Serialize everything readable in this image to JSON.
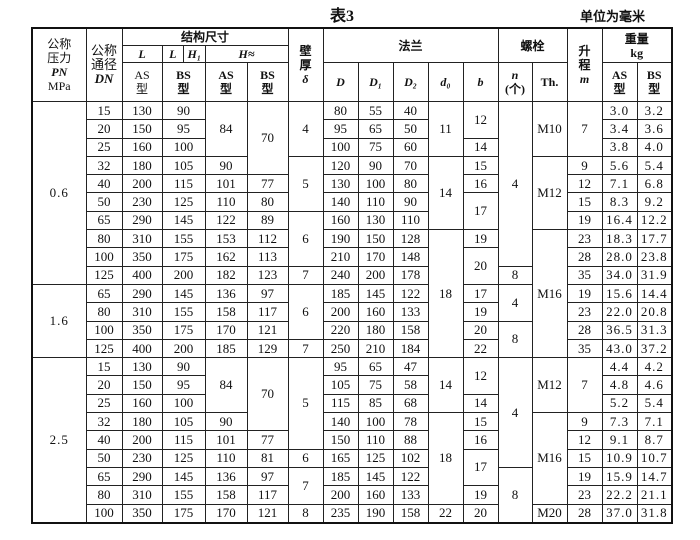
{
  "title": "表3",
  "unit": "单位为毫米",
  "header": {
    "pn": [
      "公称",
      "压力",
      "PN",
      "MPa"
    ],
    "dn": [
      "公称",
      "通径",
      "DN"
    ],
    "structure": "结构尺寸",
    "l": "L",
    "l_bs": "L",
    "h1": "H₁",
    "h_approx": "H≈",
    "wall": [
      "壁",
      "厚",
      "δ"
    ],
    "flange": "法兰",
    "d": "D",
    "d1": "D₁",
    "d2": "D₂",
    "d0": "d₀",
    "b": "b",
    "bolt": "螺栓",
    "n": [
      "n",
      "(个)"
    ],
    "th": "Th.",
    "lift": [
      "升",
      "程",
      "m"
    ],
    "weight": [
      "重量",
      "kg"
    ],
    "as_type": [
      "AS",
      "型"
    ],
    "bs_type": [
      "BS",
      "型"
    ]
  },
  "columns": {
    "pn": [
      "0.6",
      "1.6",
      "2.5"
    ],
    "dn": [
      "15",
      "20",
      "25",
      "32",
      "40",
      "50",
      "65",
      "80",
      "100",
      "125",
      "65",
      "80",
      "100",
      "125",
      "15",
      "20",
      "25",
      "32",
      "40",
      "50",
      "65",
      "80",
      "100"
    ],
    "l_as": [
      "130",
      "150",
      "160",
      "180",
      "200",
      "230",
      "290",
      "310",
      "350",
      "400",
      "290",
      "310",
      "350",
      "400",
      "130",
      "150",
      "160",
      "180",
      "200",
      "230",
      "290",
      "310",
      "350"
    ],
    "l_bs": [
      "90",
      "95",
      "100",
      "105",
      "115",
      "125",
      "145",
      "155",
      "175",
      "200",
      "145",
      "155",
      "175",
      "200",
      "90",
      "95",
      "100",
      "105",
      "115",
      "125",
      "145",
      "155",
      "175"
    ],
    "h_as": [
      "84",
      "90",
      "101",
      "110",
      "122",
      "153",
      "162",
      "182",
      "136",
      "158",
      "170",
      "185",
      "84",
      "90",
      "101",
      "110",
      "136",
      "158",
      "170"
    ],
    "h_bs": [
      "70",
      "77",
      "80",
      "89",
      "112",
      "113",
      "123",
      "97",
      "117",
      "121",
      "129",
      "70",
      "77",
      "81",
      "97",
      "117",
      "121"
    ],
    "delta": [
      "4",
      "5",
      "6",
      "7",
      "6",
      "7",
      "5",
      "6",
      "7",
      "8"
    ],
    "d": [
      "80",
      "95",
      "100",
      "120",
      "130",
      "140",
      "160",
      "190",
      "210",
      "240",
      "185",
      "200",
      "220",
      "250",
      "95",
      "105",
      "115",
      "140",
      "150",
      "165",
      "185",
      "200",
      "235"
    ],
    "d1": [
      "55",
      "65",
      "75",
      "90",
      "100",
      "110",
      "130",
      "150",
      "170",
      "200",
      "145",
      "160",
      "180",
      "210",
      "65",
      "75",
      "85",
      "100",
      "110",
      "125",
      "145",
      "160",
      "190"
    ],
    "d2": [
      "40",
      "50",
      "60",
      "70",
      "80",
      "90",
      "110",
      "128",
      "148",
      "178",
      "122",
      "133",
      "158",
      "184",
      "47",
      "58",
      "68",
      "78",
      "88",
      "102",
      "122",
      "133",
      "158"
    ],
    "d0": [
      "11",
      "14",
      "18",
      "14",
      "18",
      "22"
    ],
    "b": [
      "12",
      "14",
      "15",
      "16",
      "17",
      "19",
      "20",
      "17",
      "19",
      "20",
      "22",
      "12",
      "14",
      "15",
      "16",
      "17",
      "19",
      "20"
    ],
    "n": [
      "4",
      "8",
      "4",
      "8",
      "4",
      "8"
    ],
    "th": [
      "M10",
      "M12",
      "M16",
      "M12",
      "M16",
      "M20"
    ],
    "m": [
      "7",
      "9",
      "12",
      "15",
      "19",
      "23",
      "28",
      "35",
      "19",
      "23",
      "28",
      "35",
      "7",
      "9",
      "12",
      "15",
      "19",
      "23",
      "28"
    ],
    "w_as": [
      "3.0",
      "3.4",
      "3.8",
      "5.6",
      "7.1",
      "8.3",
      "16.4",
      "18.3",
      "28.0",
      "34.0",
      "15.6",
      "22.0",
      "36.5",
      "43.0",
      "4.4",
      "4.8",
      "5.2",
      "7.3",
      "9.1",
      "10.9",
      "15.9",
      "22.2",
      "37.0"
    ],
    "w_bs": [
      "3.2",
      "3.6",
      "4.0",
      "5.4",
      "6.8",
      "9.2",
      "12.2",
      "17.7",
      "23.8",
      "31.9",
      "14.4",
      "20.8",
      "31.3",
      "37.2",
      "4.2",
      "4.6",
      "5.4",
      "7.1",
      "8.7",
      "10.7",
      "14.7",
      "21.1",
      "31.8"
    ]
  }
}
